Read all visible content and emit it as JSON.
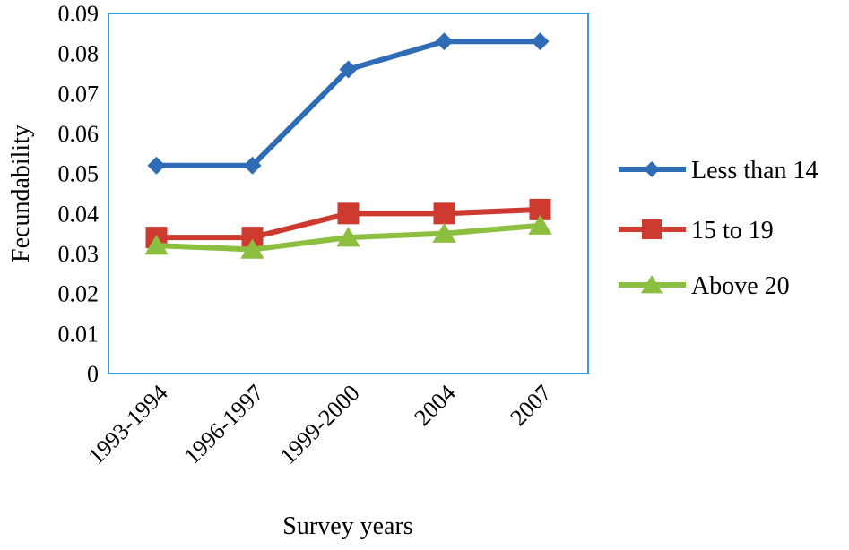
{
  "chart_data": {
    "type": "line",
    "title": "",
    "xlabel": "Survey years",
    "ylabel": "Fecundability",
    "categories": [
      "1993-1994",
      "1996-1997",
      "1999-2000",
      "2004",
      "2007"
    ],
    "ylim": [
      0,
      0.09
    ],
    "yticks": [
      "0",
      "0.01",
      "0.02",
      "0.03",
      "0.04",
      "0.05",
      "0.06",
      "0.07",
      "0.08",
      "0.09"
    ],
    "grid": false,
    "legend_position": "right",
    "series": [
      {
        "name": "Less than 14",
        "values": [
          0.052,
          0.052,
          0.076,
          0.083,
          0.083
        ],
        "color": "#2e6db5",
        "marker": "diamond"
      },
      {
        "name": "15 to 19",
        "values": [
          0.034,
          0.034,
          0.04,
          0.04,
          0.041
        ],
        "color": "#cf3a30",
        "marker": "square"
      },
      {
        "name": "Above 20",
        "values": [
          0.032,
          0.031,
          0.034,
          0.035,
          0.037
        ],
        "color": "#8cbf3f",
        "marker": "triangle"
      }
    ],
    "plot_border_color": "#3a9ad9"
  }
}
